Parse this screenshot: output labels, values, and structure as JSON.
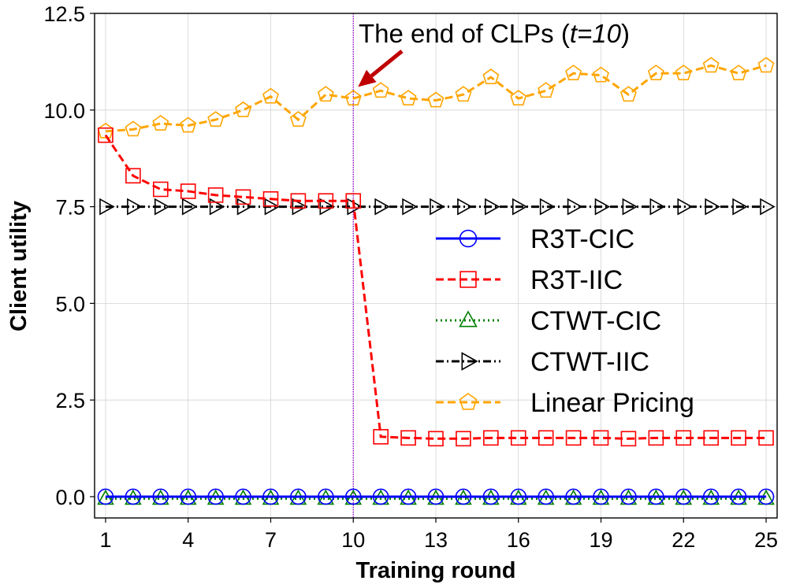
{
  "chart_data": {
    "type": "line",
    "xlabel": "Training round",
    "ylabel": "Client utility",
    "xlim": [
      0.6,
      25.4
    ],
    "ylim": [
      -0.55,
      12.5
    ],
    "xticks": [
      1,
      4,
      7,
      10,
      13,
      16,
      19,
      22,
      25
    ],
    "yticks": [
      0.0,
      2.5,
      5.0,
      7.5,
      10.0,
      12.5
    ],
    "ytick_labels": [
      "0.0",
      "2.5",
      "5.0",
      "7.5",
      "10.0",
      "12.5"
    ],
    "grid": true,
    "legend_position": "center-right",
    "x": [
      1,
      2,
      3,
      4,
      5,
      6,
      7,
      8,
      9,
      10,
      11,
      12,
      13,
      14,
      15,
      16,
      17,
      18,
      19,
      20,
      21,
      22,
      23,
      24,
      25
    ],
    "series": [
      {
        "name": "R3T-CIC",
        "color": "#0000ff",
        "line": "solid",
        "marker": "circle",
        "values": [
          0,
          0,
          0,
          0,
          0,
          0,
          0,
          0,
          0,
          0,
          0,
          0,
          0,
          0,
          0,
          0,
          0,
          0,
          0,
          0,
          0,
          0,
          0,
          0,
          0
        ]
      },
      {
        "name": "R3T-IIC",
        "color": "#ff0000",
        "line": "dashed",
        "marker": "square",
        "values": [
          9.35,
          8.3,
          7.95,
          7.9,
          7.8,
          7.75,
          7.7,
          7.65,
          7.65,
          7.65,
          1.55,
          1.52,
          1.5,
          1.5,
          1.52,
          1.52,
          1.52,
          1.52,
          1.52,
          1.5,
          1.52,
          1.52,
          1.52,
          1.52,
          1.52
        ]
      },
      {
        "name": "CTWT-CIC",
        "color": "#008000",
        "line": "dotted",
        "marker": "triangle-up",
        "values": [
          -0.05,
          -0.05,
          -0.05,
          -0.05,
          -0.05,
          -0.05,
          -0.05,
          -0.05,
          -0.05,
          -0.05,
          -0.05,
          -0.05,
          -0.05,
          -0.05,
          -0.05,
          -0.05,
          -0.05,
          -0.05,
          -0.05,
          -0.05,
          -0.05,
          -0.05,
          -0.05,
          -0.05,
          -0.05
        ]
      },
      {
        "name": "CTWT-IIC",
        "color": "#000000",
        "line": "dashdot",
        "marker": "triangle-right",
        "values": [
          7.5,
          7.5,
          7.5,
          7.5,
          7.5,
          7.5,
          7.5,
          7.5,
          7.5,
          7.5,
          7.5,
          7.5,
          7.5,
          7.5,
          7.5,
          7.5,
          7.5,
          7.5,
          7.5,
          7.5,
          7.5,
          7.5,
          7.5,
          7.5,
          7.5
        ]
      },
      {
        "name": "Linear Pricing",
        "color": "#ffa500",
        "line": "dashed",
        "marker": "pentagon",
        "values": [
          9.45,
          9.5,
          9.65,
          9.6,
          9.75,
          10.0,
          10.35,
          9.75,
          10.4,
          10.3,
          10.5,
          10.3,
          10.25,
          10.4,
          10.85,
          10.3,
          10.5,
          10.95,
          10.9,
          10.4,
          10.95,
          10.95,
          11.15,
          10.95,
          11.15
        ]
      }
    ],
    "vline": {
      "x": 10,
      "color": "#9400d3"
    },
    "annotation": {
      "text_prefix": "The end of CLPs (",
      "text_italic": "t=10",
      "text_suffix": ")",
      "arrow_color": "#c00000",
      "points_to": [
        10,
        10.6
      ]
    }
  }
}
